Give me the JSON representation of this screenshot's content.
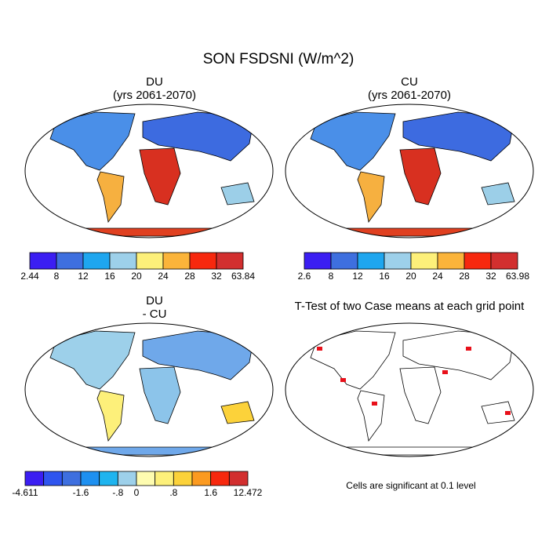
{
  "title": "SON FSDSNI (W/m^2)",
  "panels": [
    {
      "title": "DU",
      "subtitle": "(yrs 2061-2070)",
      "colorbar": {
        "colors": [
          "#3b1ef2",
          "#3e6fdf",
          "#1ea6ef",
          "#9dd0ea",
          "#fdf07a",
          "#fbb43a",
          "#f7280e",
          "#d22f2f"
        ],
        "labels": [
          "2.44",
          "8",
          "12",
          "16",
          "20",
          "24",
          "28",
          "32",
          "63.84"
        ]
      }
    },
    {
      "title": "CU",
      "subtitle": "(yrs 2061-2070)",
      "colorbar": {
        "colors": [
          "#3b1ef2",
          "#3e6fdf",
          "#1ea6ef",
          "#9dd0ea",
          "#fdf07a",
          "#fbb43a",
          "#f7280e",
          "#d22f2f"
        ],
        "labels": [
          "2.6",
          "8",
          "12",
          "16",
          "20",
          "24",
          "28",
          "32",
          "63.98"
        ]
      }
    },
    {
      "title": "DU",
      "subtitle": "- CU",
      "colorbar": {
        "colors": [
          "#3b1ef2",
          "#2f55ef",
          "#3e6fdf",
          "#1e90f0",
          "#1eb4ef",
          "#9dd0ea",
          "#fefcb0",
          "#fdf07a",
          "#fcd23a",
          "#fb9a20",
          "#f7280e",
          "#d22f2f"
        ],
        "labels": [
          "-4.611",
          null,
          null,
          "-1.6",
          null,
          "-.8",
          "0",
          null,
          ".8",
          null,
          "1.6",
          null,
          "12.472"
        ]
      }
    },
    {
      "title": "T-Test of two Case means at each grid point",
      "note": "Cells are significant at 0.1 level"
    }
  ]
}
